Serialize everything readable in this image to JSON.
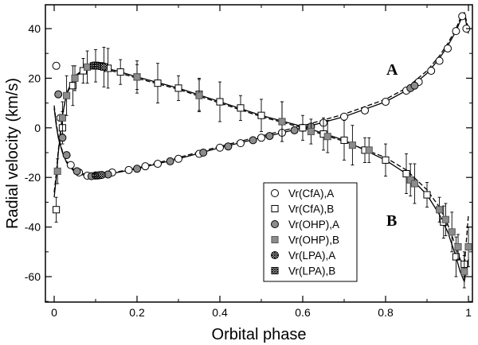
{
  "chart_data": {
    "type": "scatter",
    "xlabel": "Orbital phase",
    "ylabel": "Radial velocity (km/s)",
    "xlim": [
      -0.02,
      1.01
    ],
    "ylim": [
      -70,
      50
    ],
    "xticks": [
      0,
      0.2,
      0.4,
      0.6,
      0.8,
      1
    ],
    "xtick_labels": [
      "0",
      "0.2",
      "0.4",
      "0.6",
      "0.8",
      "1"
    ],
    "yticks": [
      -60,
      -40,
      -20,
      0,
      20,
      40
    ],
    "ytick_labels": [
      "-60",
      "-40",
      "-20",
      "0",
      "20",
      "40"
    ],
    "annotations": [
      {
        "text": "A",
        "x": 0.835,
        "y": 23
      },
      {
        "text": "B",
        "x": 0.835,
        "y": -37
      }
    ],
    "legend_position": "lower-right",
    "model_curves": [
      {
        "name": "model A (solid)",
        "style": "solid",
        "x": [
          0.0,
          0.005,
          0.01,
          0.02,
          0.03,
          0.05,
          0.08,
          0.12,
          0.2,
          0.3,
          0.4,
          0.5,
          0.6,
          0.7,
          0.8,
          0.85,
          0.9,
          0.93,
          0.95,
          0.97,
          0.98,
          0.99,
          1.0
        ],
        "y": [
          8,
          1,
          -4,
          -10,
          -14,
          -18,
          -19.5,
          -19,
          -16.5,
          -12.5,
          -8,
          -4,
          0,
          4.5,
          10.5,
          15,
          22,
          28,
          33,
          39,
          43,
          46,
          38
        ]
      },
      {
        "name": "model A (dashed)",
        "style": "dashed",
        "x": [
          0.0,
          0.005,
          0.01,
          0.02,
          0.03,
          0.05,
          0.08,
          0.12,
          0.2,
          0.3,
          0.4,
          0.5,
          0.6,
          0.7,
          0.8,
          0.85,
          0.9,
          0.93,
          0.95,
          0.97,
          0.98,
          0.99,
          1.0
        ],
        "y": [
          9,
          2,
          -3.5,
          -9.5,
          -13.5,
          -17.5,
          -19,
          -18.8,
          -16.2,
          -12,
          -7.5,
          -3.3,
          0.8,
          5.5,
          11.5,
          16,
          23,
          29,
          34,
          40,
          44,
          46.5,
          40
        ]
      },
      {
        "name": "model B (solid)",
        "style": "solid",
        "x": [
          0.0,
          0.005,
          0.01,
          0.02,
          0.03,
          0.05,
          0.08,
          0.1,
          0.15,
          0.2,
          0.3,
          0.4,
          0.5,
          0.6,
          0.7,
          0.8,
          0.85,
          0.9,
          0.93,
          0.95,
          0.97,
          0.98,
          0.99,
          1.0
        ],
        "y": [
          -28,
          -20,
          -10,
          5,
          14,
          21,
          24.5,
          25,
          23,
          20.5,
          16,
          10.5,
          5,
          0.5,
          -5,
          -13,
          -18.5,
          -27,
          -35,
          -42,
          -52,
          -58,
          -62,
          -53
        ]
      },
      {
        "name": "model B (dashed)",
        "style": "dashed",
        "x": [
          0.0,
          0.005,
          0.01,
          0.02,
          0.03,
          0.05,
          0.08,
          0.1,
          0.15,
          0.2,
          0.3,
          0.4,
          0.5,
          0.6,
          0.7,
          0.8,
          0.85,
          0.9,
          0.93,
          0.95,
          0.97,
          0.98,
          0.99,
          1.0
        ],
        "y": [
          -26,
          -18.5,
          -9,
          5.5,
          13.5,
          20.5,
          24,
          24.5,
          22.5,
          20,
          15.5,
          10,
          4.5,
          0,
          -5.5,
          -12,
          -17,
          -25,
          -32,
          -39,
          -48,
          -53,
          -56,
          -35
        ]
      }
    ],
    "series": [
      {
        "name": "Vr(CfA),A",
        "marker": "open-circle",
        "x": [
          0.005,
          0.015,
          0.04,
          0.06,
          0.08,
          0.1,
          0.14,
          0.18,
          0.22,
          0.25,
          0.3,
          0.35,
          0.4,
          0.45,
          0.5,
          0.55,
          0.6,
          0.65,
          0.7,
          0.75,
          0.8,
          0.85,
          0.88,
          0.91,
          0.93,
          0.95,
          0.97,
          0.985,
          0.995
        ],
        "y": [
          25,
          4,
          -15,
          -18,
          -19.3,
          -19.2,
          -18,
          -17,
          -15.5,
          -14.5,
          -12.5,
          -10.5,
          -8,
          -6.2,
          -4,
          -2,
          0,
          2,
          4.5,
          7,
          10.5,
          15,
          18.5,
          23,
          27,
          32,
          39,
          45,
          40
        ]
      },
      {
        "name": "Vr(CfA),B",
        "marker": "open-square",
        "x": [
          0.005,
          0.02,
          0.045,
          0.07,
          0.1,
          0.13,
          0.16,
          0.2,
          0.25,
          0.3,
          0.35,
          0.4,
          0.45,
          0.5,
          0.55,
          0.6,
          0.65,
          0.7,
          0.75,
          0.8,
          0.85,
          0.9,
          0.94,
          0.97,
          0.99
        ],
        "y": [
          -33,
          0,
          17,
          23,
          25,
          24,
          22.5,
          20.5,
          18,
          16,
          13.5,
          10.5,
          8,
          5,
          2.5,
          0,
          -2.5,
          -5,
          -9,
          -13,
          -18.5,
          -27,
          -38,
          -52,
          -55
        ]
      },
      {
        "name": "Vr(OHP),A",
        "marker": "filled-circle",
        "x": [
          0.01,
          0.02,
          0.03,
          0.055,
          0.09,
          0.13,
          0.2,
          0.28,
          0.36,
          0.42,
          0.48,
          0.52,
          0.58,
          0.62,
          0.86,
          0.87
        ],
        "y": [
          13.5,
          -4,
          -11,
          -17.5,
          -19.5,
          -18.8,
          -16.5,
          -13.5,
          -10,
          -7.5,
          -5,
          -3.3,
          -1,
          0.5,
          16,
          17
        ]
      },
      {
        "name": "Vr(OHP),B",
        "marker": "filled-square",
        "x": [
          0.008,
          0.02,
          0.03,
          0.05,
          0.08,
          0.12,
          0.2,
          0.35,
          0.55,
          0.62,
          0.66,
          0.72,
          0.76,
          0.86,
          0.87,
          0.93,
          0.945,
          0.96,
          0.975,
          0.99,
          1.0
        ],
        "y": [
          -17.5,
          4,
          13,
          20,
          24.5,
          24.5,
          20.5,
          13,
          2.5,
          -1.5,
          -3.5,
          -7,
          -9,
          -21,
          -22.5,
          -33,
          -37,
          -42,
          -48,
          -58,
          -48
        ]
      },
      {
        "name": "Vr(LPA),A",
        "marker": "hatched-circle",
        "x": [
          0.1,
          0.105,
          0.11,
          0.115
        ],
        "y": [
          -19.2,
          -19.2,
          -19.1,
          -19.0
        ]
      },
      {
        "name": "Vr(LPA),B",
        "marker": "hatched-square",
        "x": [
          0.095,
          0.1,
          0.105,
          0.11,
          0.115,
          0.12
        ],
        "y": [
          25,
          25.2,
          25,
          25,
          24.8,
          24.6
        ]
      }
    ]
  }
}
